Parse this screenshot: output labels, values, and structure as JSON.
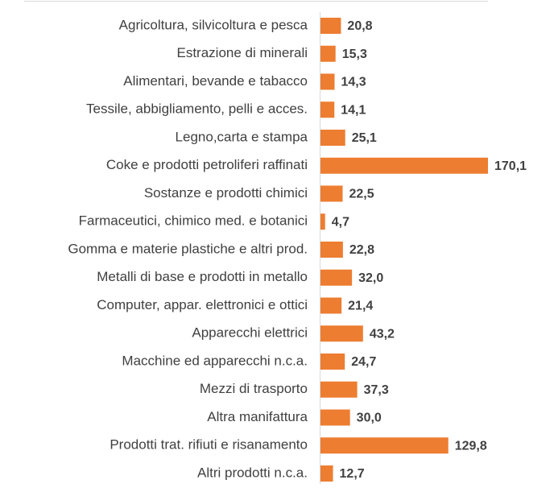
{
  "chart_data": {
    "type": "barh",
    "color": "#ed7d31",
    "categories": [
      "Agricoltura, silvicoltura e pesca",
      "Estrazione di minerali",
      "Alimentari, bevande e tabacco",
      "Tessile, abbigliamento, pelli e acces.",
      "Legno,carta e stampa",
      "Coke e prodotti petroliferi raffinati",
      "Sostanze e prodotti chimici",
      "Farmaceutici, chimico med. e botanici",
      "Gomma e materie plastiche e altri prod.",
      "Metalli di base e prodotti in metallo",
      "Computer, appar. elettronici e ottici",
      "Apparecchi elettrici",
      "Macchine ed apparecchi n.c.a.",
      "Mezzi di trasporto",
      "Altra manifattura",
      "Prodotti trat. rifiuti e risanamento",
      "Altri prodotti n.c.a."
    ],
    "values": [
      20.8,
      15.3,
      14.3,
      14.1,
      25.1,
      170.1,
      22.5,
      4.7,
      22.8,
      32.0,
      21.4,
      43.2,
      24.7,
      37.3,
      30.0,
      129.8,
      12.7
    ],
    "value_labels": [
      "20,8",
      "15,3",
      "14,3",
      "14,1",
      "25,1",
      "170,1",
      "22,5",
      "4,7",
      "22,8",
      "32,0",
      "21,4",
      "43,2",
      "24,7",
      "37,3",
      "30,0",
      "129,8",
      "12,7"
    ]
  }
}
